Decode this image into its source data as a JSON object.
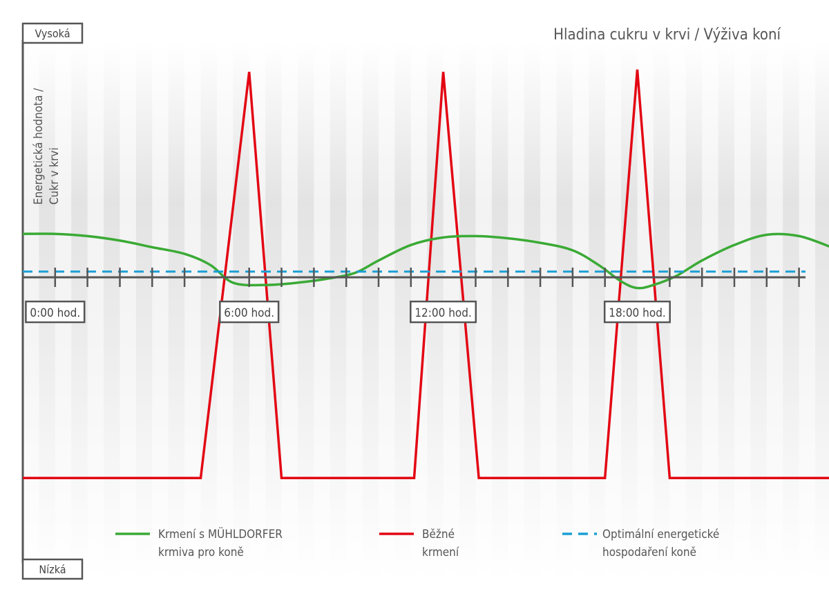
{
  "chart_data": {
    "type": "line",
    "title": "Hladina cukru v krvi / Výživa koní",
    "ylabel_line1": "Energetická hodnota /",
    "ylabel_line2": "Cukr v krvi",
    "y_top_label": "Vysoká",
    "y_bottom_label": "Nízká",
    "xlim": [
      -1,
      23.2
    ],
    "ylim": [
      0,
      100
    ],
    "x_labels": [
      {
        "x": 0,
        "label": "0:00 hod."
      },
      {
        "x": 6,
        "label": "6:00 hod."
      },
      {
        "x": 12,
        "label": "12:00 hod."
      },
      {
        "x": 18,
        "label": "18:00 hod."
      }
    ],
    "ticks": [
      0,
      1,
      2,
      3,
      4,
      6,
      7,
      8,
      9,
      10,
      11,
      13,
      14,
      15,
      16,
      17,
      19,
      20,
      21,
      22,
      23
    ],
    "series": [
      {
        "name": "Krmení s MÜHLDORFER krmiva pro koně",
        "color": "#3aaa35",
        "style": "solid",
        "x": [
          -1,
          0,
          1,
          2,
          3,
          4,
          4.8,
          5.5,
          6.5,
          7.5,
          8.5,
          9.3,
          10,
          11,
          12,
          13,
          14,
          15,
          16,
          16.8,
          17.5,
          18,
          18.5,
          19.2,
          20,
          21,
          22,
          23,
          24
        ],
        "y": [
          59,
          59,
          58.5,
          57.5,
          56,
          54.5,
          52,
          48,
          47.5,
          48,
          49,
          50.3,
          53,
          56.5,
          58.2,
          58.5,
          58,
          57,
          55.3,
          52,
          48.3,
          46.8,
          47.5,
          49.5,
          53,
          56.5,
          58.8,
          58.5,
          56
        ]
      },
      {
        "name": "Běžné krmení",
        "color": "#e30613",
        "style": "solid",
        "x": [
          -1,
          4.5,
          6,
          7,
          11.1,
          12,
          13.1,
          17,
          18,
          19,
          24
        ],
        "y": [
          4,
          4,
          95.5,
          4,
          4,
          95.5,
          4,
          4,
          96,
          4,
          4
        ]
      },
      {
        "name": "Optimální energetické hospodaření koně",
        "color": "#1a9fd6",
        "style": "dashed",
        "x": [
          -1,
          24
        ],
        "y": [
          50.5,
          50.5
        ]
      }
    ],
    "legend": [
      {
        "line1": "Krmení s MÜHLDORFER",
        "line2": "krmiva pro koně",
        "color": "#3aaa35",
        "style": "solid"
      },
      {
        "line1": "Běžné",
        "line2": "krmení",
        "color": "#e30613",
        "style": "solid"
      },
      {
        "line1": "Optimální energetické",
        "line2": "hospodaření koně",
        "color": "#1a9fd6",
        "style": "dashed"
      }
    ],
    "legend_position": "bottom",
    "background": "alternating vertical gray bands with vertical gradient"
  }
}
